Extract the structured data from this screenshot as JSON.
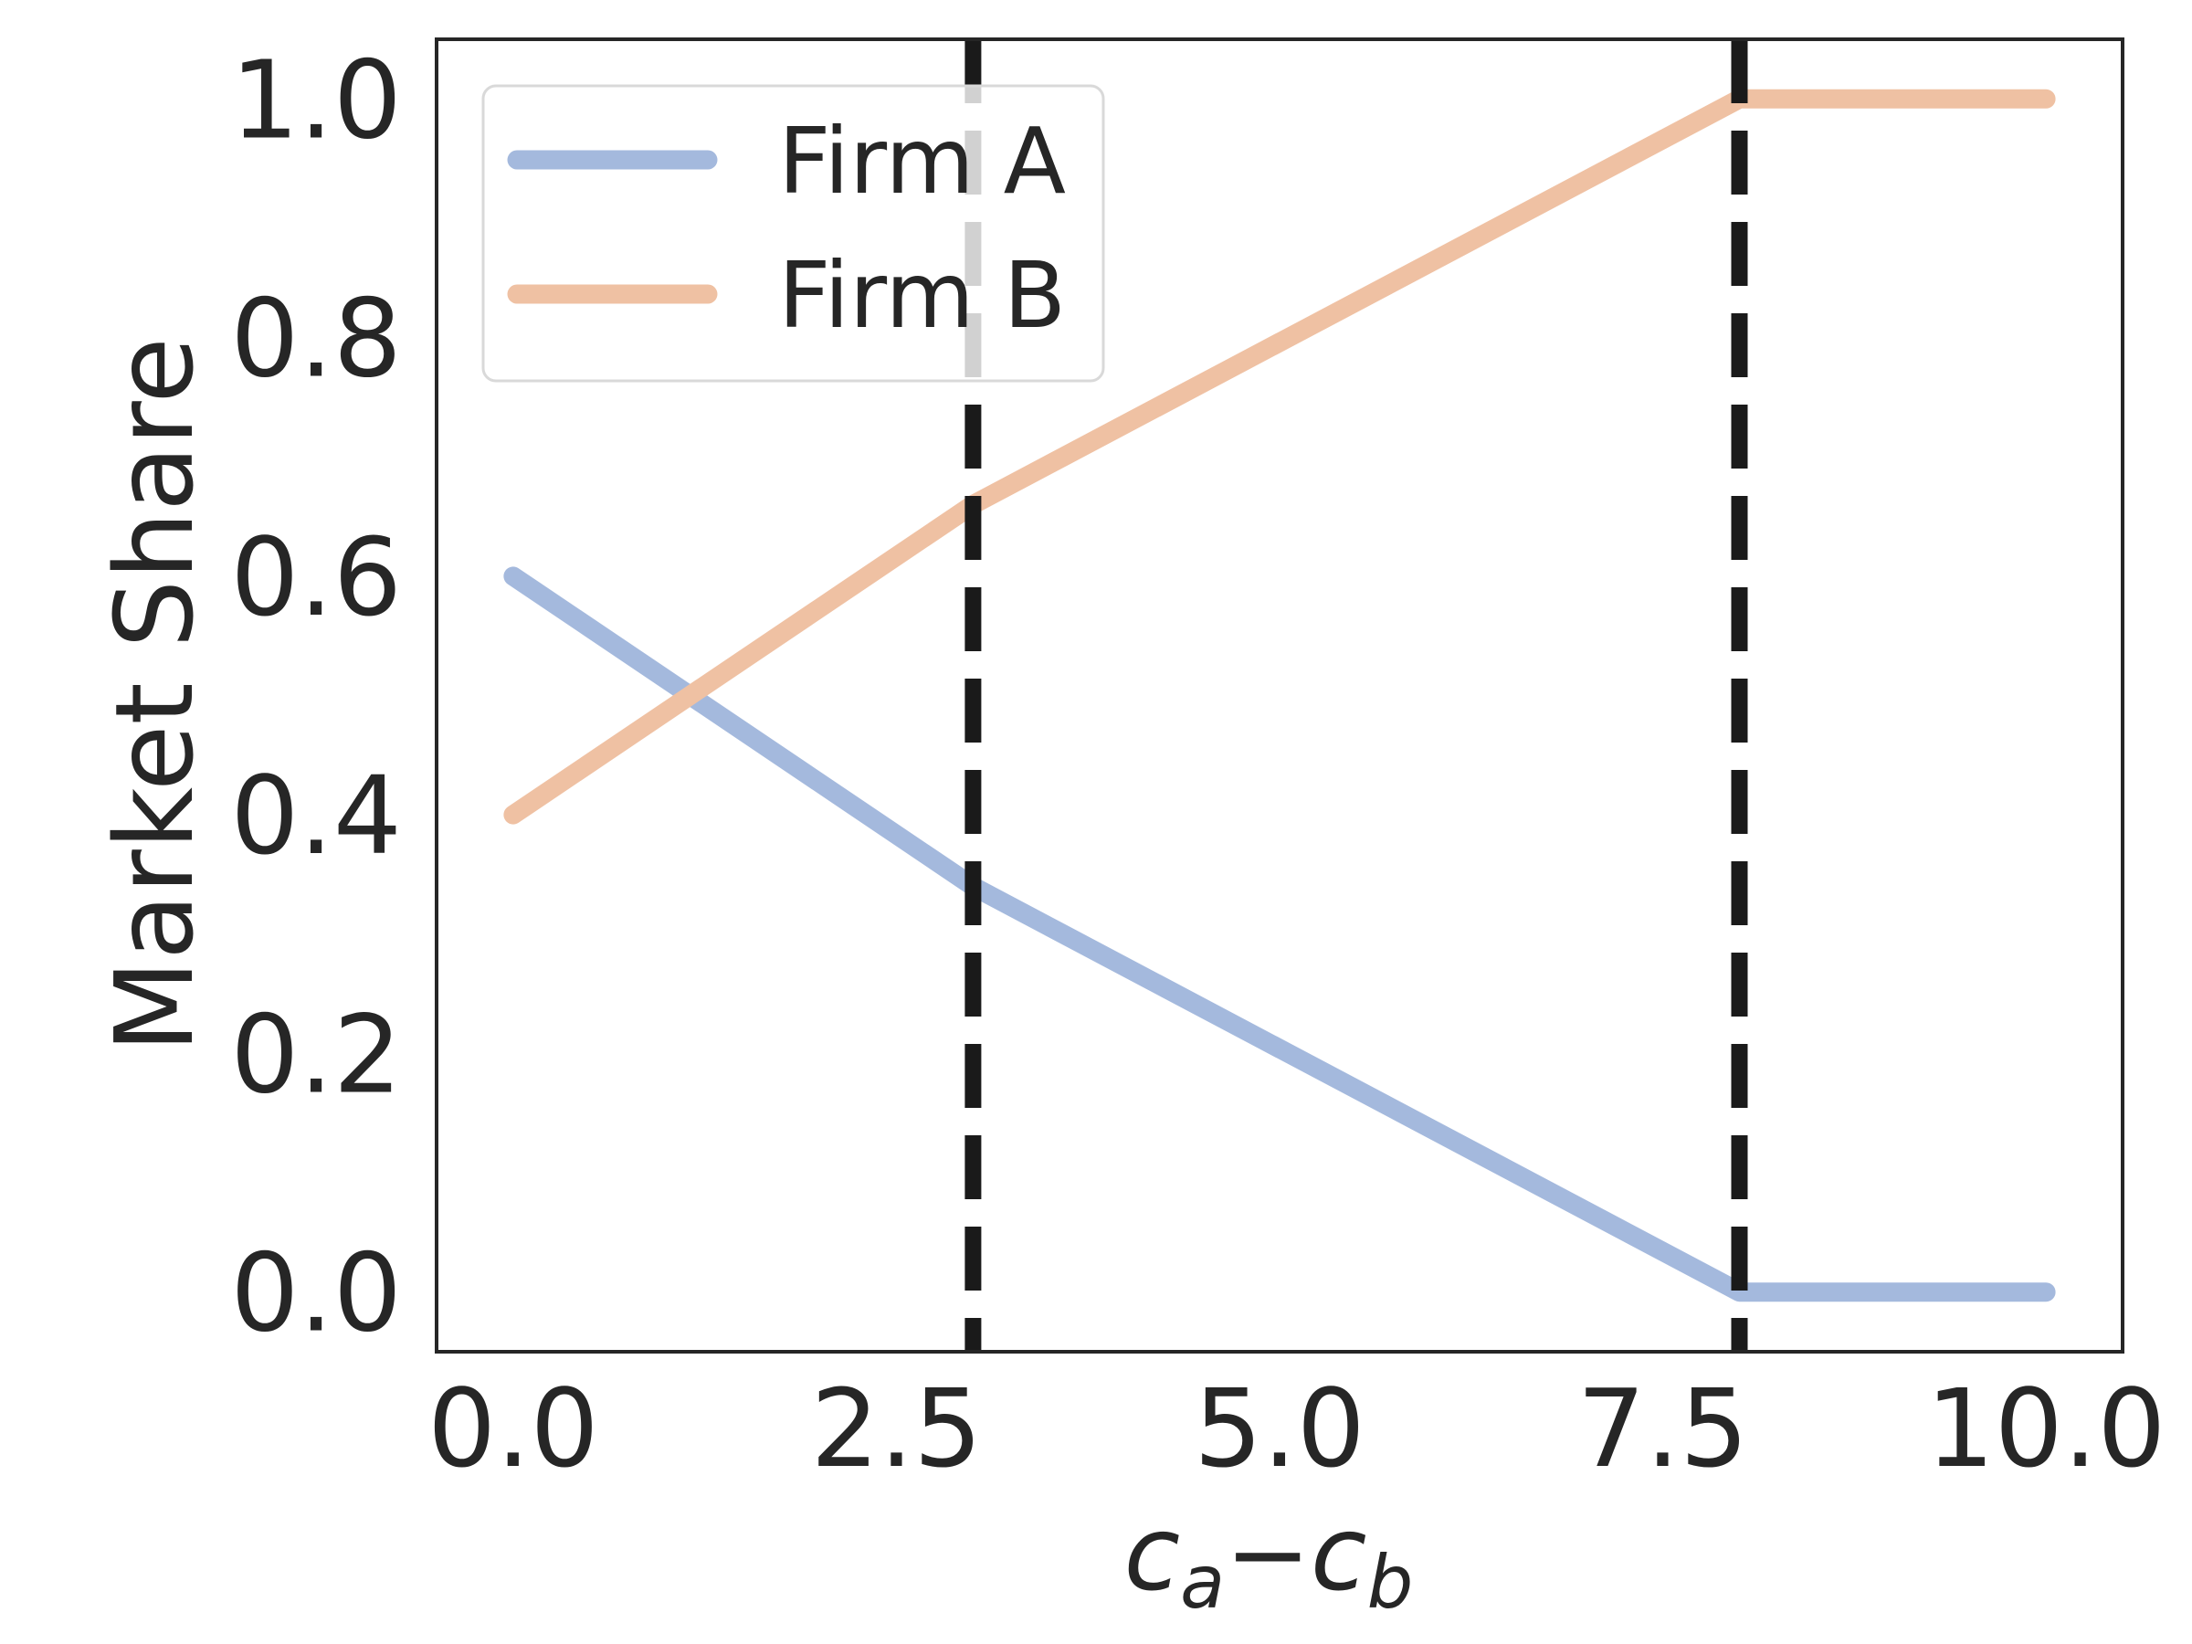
{
  "chart_data": {
    "type": "line",
    "title": "",
    "xlabel": {
      "base1": "c",
      "sub1": "a",
      "op": "−",
      "base2": "c",
      "sub2": "b"
    },
    "ylabel": "Market Share",
    "xlim": [
      -0.5,
      10.5
    ],
    "ylim": [
      -0.05,
      1.05
    ],
    "xticks": [
      0.0,
      2.5,
      5.0,
      7.5,
      10.0
    ],
    "xtick_labels": [
      "0.0",
      "2.5",
      "5.0",
      "7.5",
      "10.0"
    ],
    "yticks": [
      0.0,
      0.2,
      0.4,
      0.6,
      0.8,
      1.0
    ],
    "ytick_labels": [
      "0.0",
      "0.2",
      "0.4",
      "0.6",
      "0.8",
      "1.0"
    ],
    "grid": false,
    "legend_position": "top-left",
    "series": [
      {
        "name": "Firm A",
        "color": "#a4b9dd",
        "x": [
          0.0,
          3.0,
          8.0,
          10.0
        ],
        "y": [
          0.6,
          0.34,
          0.0,
          0.0
        ]
      },
      {
        "name": "Firm B",
        "color": "#efc1a3",
        "x": [
          0.0,
          3.0,
          8.0,
          10.0
        ],
        "y": [
          0.4,
          0.66,
          1.0,
          1.0
        ]
      }
    ],
    "vlines": [
      {
        "x": 3.0,
        "style": "dashed",
        "color": "#1a1a1a"
      },
      {
        "x": 8.0,
        "style": "dashed",
        "color": "#1a1a1a"
      }
    ]
  }
}
